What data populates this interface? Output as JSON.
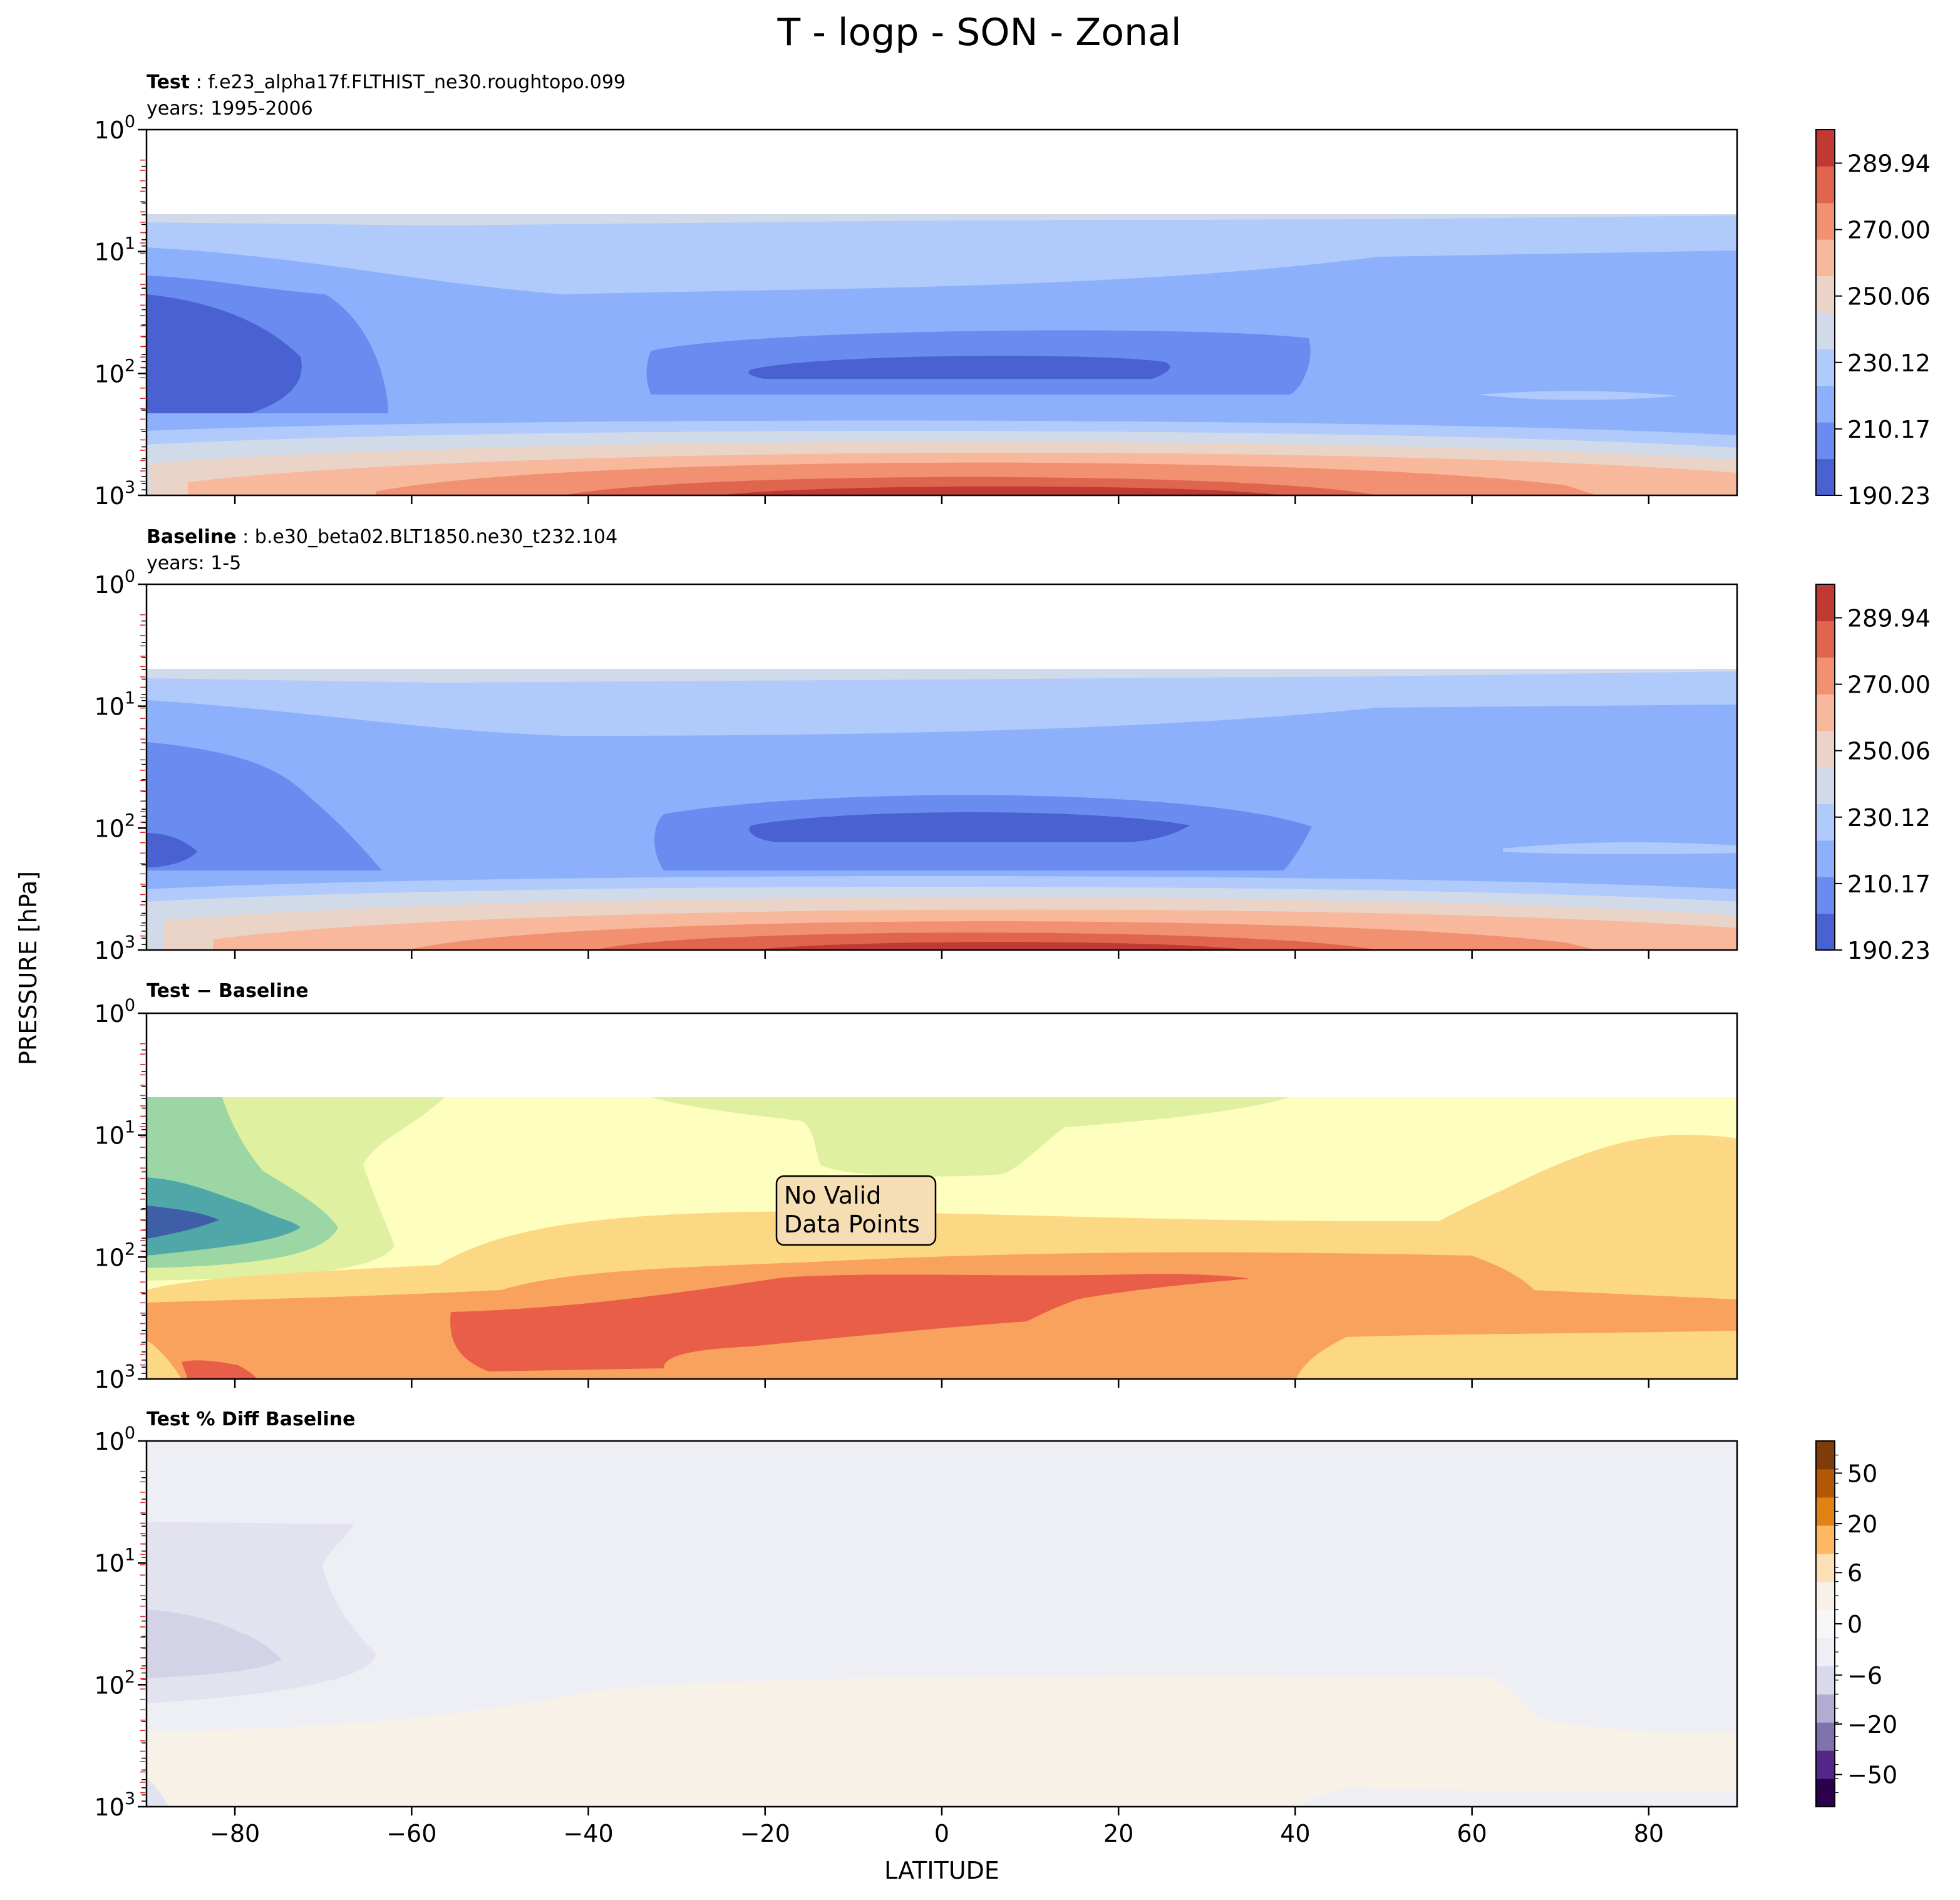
{
  "chart_data": {
    "type": "contourf",
    "title": "T - logp - SON - Zonal",
    "xlabel": "LATITUDE",
    "ylabel": "PRESSURE [hPa]",
    "xlim": [
      -90,
      90
    ],
    "xticks": [
      -80,
      -60,
      -40,
      -20,
      0,
      20,
      40,
      60,
      80
    ],
    "xtick_labels": [
      "−80",
      "−60",
      "−40",
      "−20",
      "0",
      "20",
      "40",
      "60",
      "80"
    ],
    "ylim": [
      1000,
      1
    ],
    "yscale": "log",
    "yticks": [
      {
        "base": "10",
        "exp": "0",
        "value": 1
      },
      {
        "base": "10",
        "exp": "1",
        "value": 10
      },
      {
        "base": "10",
        "exp": "2",
        "value": 100
      },
      {
        "base": "10",
        "exp": "3",
        "value": 1000
      }
    ],
    "panels": [
      {
        "label_bold": "Test",
        "label_rest": " : f.e23_alpha17f.FLTHIST_ne30.roughtopo.099",
        "subtitle": "years: 1995-2006",
        "colormap": "coolwarm",
        "colorbar_ticks": [
          "289.94",
          "270.00",
          "250.06",
          "230.12",
          "210.17",
          "190.23"
        ],
        "colorbar_tick_values": [
          289.94,
          270.0,
          250.06,
          230.12,
          210.17,
          190.23
        ],
        "colorbar_range": [
          190.23,
          300.0
        ],
        "colorbar_colors": [
          "#4a61d1",
          "#6a8bef",
          "#8db0fd",
          "#b0cbfb",
          "#d1dae8",
          "#ead4c8",
          "#f7b89c",
          "#f29072",
          "#e0654f",
          "#c03a33"
        ],
        "notes": "Cold tropopause minimum (~190 K) near 100 hPa over the equator and over the south pole; warmest (~300 K) near surface in the tropics."
      },
      {
        "label_bold": "Baseline",
        "label_rest": " : b.e30_beta02.BLT1850.ne30_t232.104",
        "subtitle": "years: 1-5",
        "colormap": "coolwarm",
        "colorbar_ticks": [
          "289.94",
          "270.00",
          "250.06",
          "230.12",
          "210.17",
          "190.23"
        ],
        "colorbar_tick_values": [
          289.94,
          270.0,
          250.06,
          230.12,
          210.17,
          190.23
        ],
        "colorbar_range": [
          190.23,
          300.0
        ],
        "colorbar_colors": [
          "#4a61d1",
          "#6a8bef",
          "#8db0fd",
          "#b0cbfb",
          "#d1dae8",
          "#ead4c8",
          "#f7b89c",
          "#f29072",
          "#e0654f",
          "#c03a33"
        ],
        "notes": "Similar structure to Test; tropical tropopause minimum near 100 hPa."
      },
      {
        "label_bold": "Test − Baseline",
        "label_rest": "",
        "subtitle": "",
        "colormap": "Spectral_r",
        "annotation": [
          "No Valid",
          "Data Points"
        ],
        "notes": "Negative differences (blue/green) over the south polar upper levels, positive (orange/red) in the lower troposphere."
      },
      {
        "label_bold": "Test % Diff Baseline",
        "label_rest": "",
        "subtitle": "",
        "colormap": "PuOr_r",
        "colorbar_ticks": [
          "50",
          "20",
          "6",
          "0",
          "−6",
          "−20",
          "−50"
        ],
        "colorbar_tick_values": [
          50,
          20,
          6,
          0,
          -6,
          -20,
          -50
        ],
        "colorbar_range": [
          -70,
          70
        ],
        "notes": "Percent differences near zero everywhere; slightly negative over south polar upper levels, slightly positive lower troposphere."
      }
    ]
  }
}
